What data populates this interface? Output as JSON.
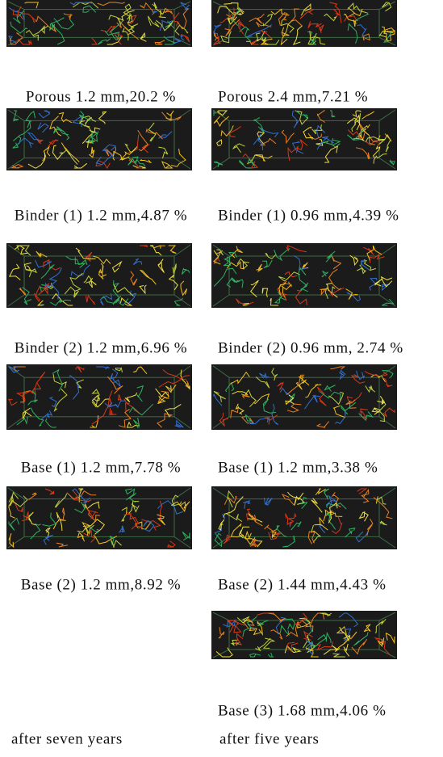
{
  "left_column": {
    "caption": "after seven years",
    "panels": [
      {
        "caption": "Porous 1.2 mm,20.2 %"
      },
      {
        "caption": "Binder (1) 1.2 mm,4.87 %"
      },
      {
        "caption": "Binder (2) 1.2 mm,6.96 %"
      },
      {
        "caption": "Base (1) 1.2 mm,7.78 %"
      },
      {
        "caption": "Base (2) 1.2 mm,8.92 %"
      }
    ]
  },
  "right_column": {
    "caption": "after five years",
    "panels": [
      {
        "caption": "Porous 2.4 mm,7.21 %"
      },
      {
        "caption": "Binder (1) 0.96 mm,4.39 %"
      },
      {
        "caption": "Binder (2) 0.96 mm, 2.74 %"
      },
      {
        "caption": "Base (1) 1.2 mm,3.38 %"
      },
      {
        "caption": "Base (2) 1.44 mm,4.43 %"
      },
      {
        "caption": "Base (3) 1.68 mm,4.06 %"
      }
    ]
  }
}
